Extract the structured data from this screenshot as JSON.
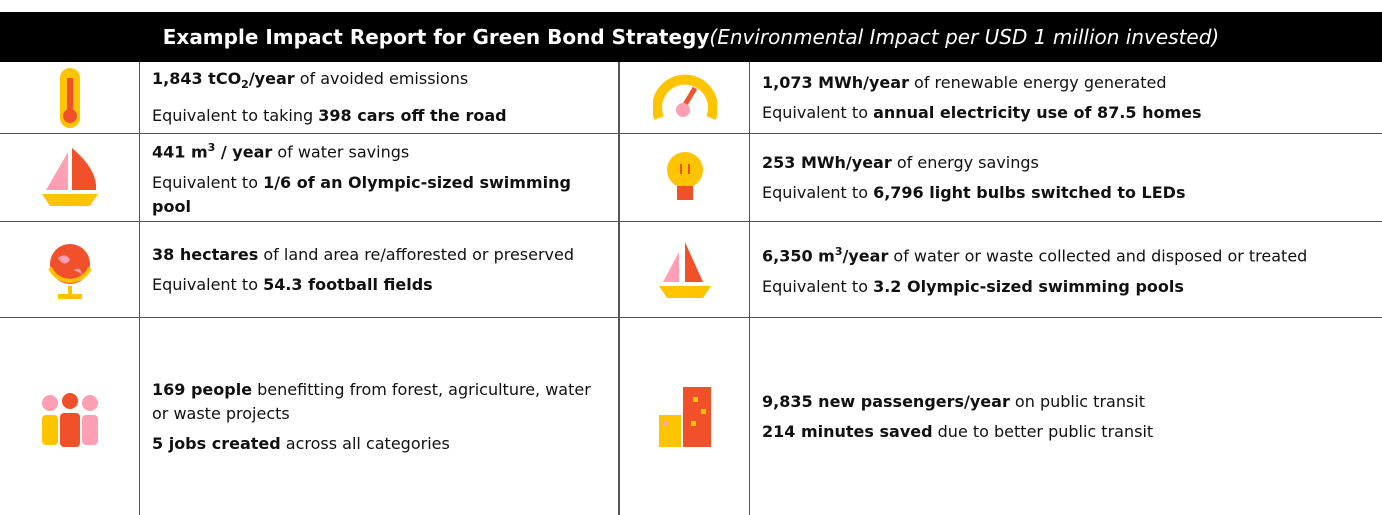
{
  "header": {
    "title_bold": "Example Impact Report for Green Bond Strategy",
    "title_italic": "(Environmental Impact per USD 1 million invested)"
  },
  "cells": [
    {
      "lines": [
        [
          {
            "text": "1,843 tCO",
            "style": "bold"
          },
          {
            "text": "2",
            "style": "bold-sub"
          },
          {
            "text": "/year",
            "style": "bold"
          },
          {
            "text": " of avoided emissions",
            "style": "normal"
          }
        ],
        [
          {
            "text": "Equivalent to taking ",
            "style": "normal"
          },
          {
            "text": "398 cars off the road",
            "style": "bold"
          }
        ]
      ]
    },
    {
      "lines": [
        [
          {
            "text": "1,073 MWh/year",
            "style": "bold"
          },
          {
            "text": " of renewable energy generated",
            "style": "normal"
          }
        ],
        [
          {
            "text": "Equivalent to ",
            "style": "normal"
          },
          {
            "text": "annual electricity use of 87.5 homes",
            "style": "bold"
          }
        ]
      ]
    },
    {
      "lines": [
        [
          {
            "text": "441 m",
            "style": "bold"
          },
          {
            "text": "3",
            "style": "bold-sup"
          },
          {
            "text": " / year",
            "style": "bold"
          },
          {
            "text": " of water savings",
            "style": "normal"
          }
        ],
        [
          {
            "text": "Equivalent to ",
            "style": "normal"
          },
          {
            "text": "1/6 of an Olympic-sized swimming pool",
            "style": "bold"
          }
        ]
      ]
    },
    {
      "lines": [
        [
          {
            "text": "253 MWh/year",
            "style": "bold"
          },
          {
            "text": " of energy savings",
            "style": "normal"
          }
        ],
        [
          {
            "text": "Equivalent to ",
            "style": "normal"
          },
          {
            "text": "6,796 light bulbs switched to LEDs",
            "style": "bold"
          }
        ]
      ]
    },
    {
      "lines": [
        [
          {
            "text": "38 hectares",
            "style": "bold"
          },
          {
            "text": " of land area re/afforested or preserved",
            "style": "normal"
          }
        ],
        [
          {
            "text": "Equivalent to ",
            "style": "normal"
          },
          {
            "text": "54.3 football fields",
            "style": "bold"
          }
        ]
      ]
    },
    {
      "lines": [
        [
          {
            "text": "6,350 m",
            "style": "bold"
          },
          {
            "text": "3",
            "style": "bold-sup"
          },
          {
            "text": "/year",
            "style": "bold"
          },
          {
            "text": " of water or waste collected and disposed or treated",
            "style": "normal"
          }
        ],
        [
          {
            "text": "Equivalent to ",
            "style": "normal"
          },
          {
            "text": "3.2 Olympic-sized swimming pools",
            "style": "bold"
          }
        ]
      ]
    },
    {
      "lines": [
        [
          {
            "text": "169 people",
            "style": "bold"
          },
          {
            "text": " benefitting from forest, agriculture, water or waste projects",
            "style": "normal"
          }
        ],
        [
          {
            "text": "5 jobs created",
            "style": "bold"
          },
          {
            "text": " across all categories",
            "style": "normal"
          }
        ]
      ]
    },
    {
      "lines": [
        [
          {
            "text": "9,835 new passengers/year",
            "style": "bold"
          },
          {
            "text": " on public transit",
            "style": "normal"
          }
        ],
        [
          {
            "text": "214 minutes saved",
            "style": "bold"
          },
          {
            "text": " due to better public transit",
            "style": "normal"
          }
        ]
      ]
    }
  ]
}
